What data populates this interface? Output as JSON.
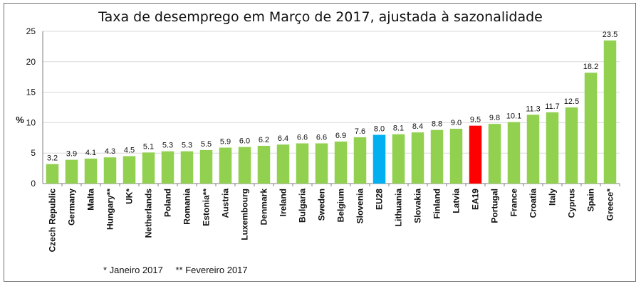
{
  "chart_data": {
    "type": "bar",
    "title": "Taxa de desemprego em Março de 2017, ajustada à sazonalidade",
    "xlabel": "",
    "ylabel": "%",
    "ylim": [
      0,
      25
    ],
    "yticks": [
      0,
      5,
      10,
      15,
      20,
      25
    ],
    "grid": true,
    "categories": [
      "Czech Republic",
      "Germany",
      "Malta",
      "Hungary**",
      "UK*",
      "Netherlands",
      "Poland",
      "Romania",
      "Estonia**",
      "Austria",
      "Luxembourg",
      "Denmark",
      "Ireland",
      "Bulgaria",
      "Sweden",
      "Belgium",
      "Slovenia",
      "EU28",
      "Lithuania",
      "Slovakia",
      "Finland",
      "Latvia",
      "EA19",
      "Portugal",
      "France",
      "Croatia",
      "Italy",
      "Cyprus",
      "Spain",
      "Greece*"
    ],
    "values": [
      3.2,
      3.9,
      4.1,
      4.3,
      4.5,
      5.1,
      5.3,
      5.3,
      5.5,
      5.9,
      6.0,
      6.2,
      6.4,
      6.6,
      6.6,
      6.9,
      7.6,
      8.0,
      8.1,
      8.4,
      8.8,
      9.0,
      9.5,
      9.8,
      10.1,
      11.3,
      11.7,
      12.5,
      18.2,
      23.5
    ],
    "value_labels": [
      "3.2",
      "3.9",
      "4.1",
      "4.3",
      "4.5",
      "5.1",
      "5.3",
      "5.3",
      "5.5",
      "5.9",
      "6.0",
      "6.2",
      "6.4",
      "6.6",
      "6.6",
      "6.9",
      "7.6",
      "8.0",
      "8.1",
      "8.4",
      "8.8",
      "9.0",
      "9.5",
      "9.8",
      "10.1",
      "11.3",
      "11.7",
      "12.5",
      "18.2",
      "23.5"
    ],
    "colors": {
      "default": "#92d050",
      "highlights": {
        "EU28": "#00b0f0",
        "EA19": "#ff0000"
      },
      "grid": "#d9d9d9",
      "axis": "#7f7f7f"
    },
    "footnotes": [
      "* Janeiro 2017",
      "** Fevereiro 2017"
    ]
  }
}
